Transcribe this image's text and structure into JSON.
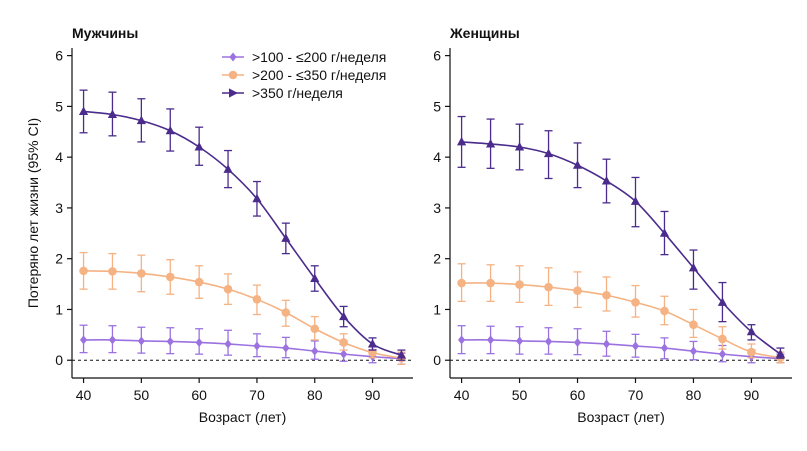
{
  "chart_data": [
    {
      "type": "line",
      "title": "Мужчины",
      "xlabel": "Возраст (лет)",
      "ylabel": "Потеряно лет жизни (95% CI)",
      "xlim": [
        38,
        97
      ],
      "ylim": [
        -0.35,
        6.15
      ],
      "xticks": [
        40,
        50,
        60,
        70,
        80,
        90
      ],
      "yticks": [
        0,
        1,
        2,
        3,
        4,
        5,
        6
      ],
      "reference_line": 0,
      "x": [
        40,
        45,
        50,
        55,
        60,
        65,
        70,
        75,
        80,
        85,
        90,
        95
      ],
      "series": [
        {
          "name": ">100 - ≤200 г/неделя",
          "color": "#9b72e0",
          "marker": "diamond",
          "values": [
            0.4,
            0.4,
            0.38,
            0.37,
            0.35,
            0.32,
            0.28,
            0.24,
            0.18,
            0.12,
            0.07,
            0.03
          ],
          "lower": [
            0.15,
            0.15,
            0.14,
            0.13,
            0.12,
            0.1,
            0.07,
            0.05,
            0.02,
            -0.02,
            -0.05,
            -0.08
          ],
          "upper": [
            0.69,
            0.68,
            0.65,
            0.64,
            0.62,
            0.59,
            0.52,
            0.45,
            0.38,
            0.31,
            0.21,
            0.14
          ]
        },
        {
          "name": ">200 - ≤350 г/неделя",
          "color": "#f5b283",
          "marker": "circle",
          "values": [
            1.76,
            1.75,
            1.71,
            1.64,
            1.54,
            1.4,
            1.2,
            0.94,
            0.62,
            0.35,
            0.15,
            0.04
          ],
          "lower": [
            1.4,
            1.4,
            1.35,
            1.3,
            1.22,
            1.1,
            0.9,
            0.67,
            0.4,
            0.2,
            0.05,
            -0.08
          ],
          "upper": [
            2.12,
            2.1,
            2.07,
            1.98,
            1.86,
            1.7,
            1.48,
            1.18,
            0.86,
            0.52,
            0.27,
            0.16
          ]
        },
        {
          "name": ">350 г/неделя",
          "color": "#4b2c8c",
          "marker": "triangle",
          "values": [
            4.9,
            4.84,
            4.72,
            4.52,
            4.2,
            3.76,
            3.18,
            2.4,
            1.61,
            0.86,
            0.32,
            0.1
          ],
          "lower": [
            4.48,
            4.42,
            4.3,
            4.12,
            3.84,
            3.4,
            2.84,
            2.1,
            1.36,
            0.66,
            0.2,
            0.0
          ],
          "upper": [
            5.32,
            5.28,
            5.15,
            4.95,
            4.59,
            4.13,
            3.52,
            2.7,
            1.86,
            1.06,
            0.44,
            0.2
          ]
        }
      ]
    },
    {
      "type": "line",
      "title": "Женщины",
      "xlabel": "Возраст (лет)",
      "ylabel": "",
      "xlim": [
        38,
        97
      ],
      "ylim": [
        -0.35,
        6.15
      ],
      "xticks": [
        40,
        50,
        60,
        70,
        80,
        90
      ],
      "yticks": [
        0,
        1,
        2,
        3,
        4,
        5,
        6
      ],
      "reference_line": 0,
      "x": [
        40,
        45,
        50,
        55,
        60,
        65,
        70,
        75,
        80,
        85,
        90,
        95
      ],
      "series": [
        {
          "name": ">100 - ≤200 г/неделя",
          "color": "#9b72e0",
          "marker": "diamond",
          "values": [
            0.4,
            0.4,
            0.38,
            0.37,
            0.35,
            0.32,
            0.28,
            0.24,
            0.18,
            0.12,
            0.07,
            0.03
          ],
          "lower": [
            0.13,
            0.13,
            0.12,
            0.12,
            0.11,
            0.08,
            0.06,
            0.03,
            0.01,
            -0.03,
            -0.05,
            -0.05
          ],
          "upper": [
            0.68,
            0.67,
            0.66,
            0.64,
            0.62,
            0.57,
            0.51,
            0.44,
            0.37,
            0.29,
            0.2,
            0.12
          ]
        },
        {
          "name": ">200 - ≤350 г/неделя",
          "color": "#f5b283",
          "marker": "circle",
          "values": [
            1.52,
            1.52,
            1.49,
            1.44,
            1.37,
            1.28,
            1.14,
            0.97,
            0.7,
            0.42,
            0.16,
            0.05
          ],
          "lower": [
            1.16,
            1.16,
            1.14,
            1.08,
            1.04,
            0.97,
            0.85,
            0.7,
            0.45,
            0.22,
            0.05,
            -0.05
          ],
          "upper": [
            1.9,
            1.88,
            1.86,
            1.82,
            1.74,
            1.64,
            1.47,
            1.26,
            1.0,
            0.66,
            0.32,
            0.16
          ]
        },
        {
          "name": ">350 г/неделя",
          "color": "#4b2c8c",
          "marker": "triangle",
          "values": [
            4.3,
            4.26,
            4.2,
            4.07,
            3.84,
            3.53,
            3.13,
            2.5,
            1.82,
            1.14,
            0.56,
            0.12
          ],
          "lower": [
            3.8,
            3.78,
            3.75,
            3.58,
            3.4,
            3.1,
            2.63,
            2.08,
            1.4,
            0.76,
            0.4,
            0.04
          ],
          "upper": [
            4.8,
            4.75,
            4.65,
            4.52,
            4.28,
            3.96,
            3.6,
            2.93,
            2.17,
            1.53,
            0.7,
            0.24
          ]
        }
      ]
    }
  ],
  "legend": {
    "placement": "top-center",
    "entries": [
      {
        "label": ">100 - ≤200 г/неделя",
        "color": "#9b72e0",
        "marker": "diamond"
      },
      {
        "label": ">200 - ≤350 г/неделя",
        "color": "#f5b283",
        "marker": "circle"
      },
      {
        "label": ">350 г/неделя",
        "color": "#4b2c8c",
        "marker": "triangle"
      }
    ]
  }
}
